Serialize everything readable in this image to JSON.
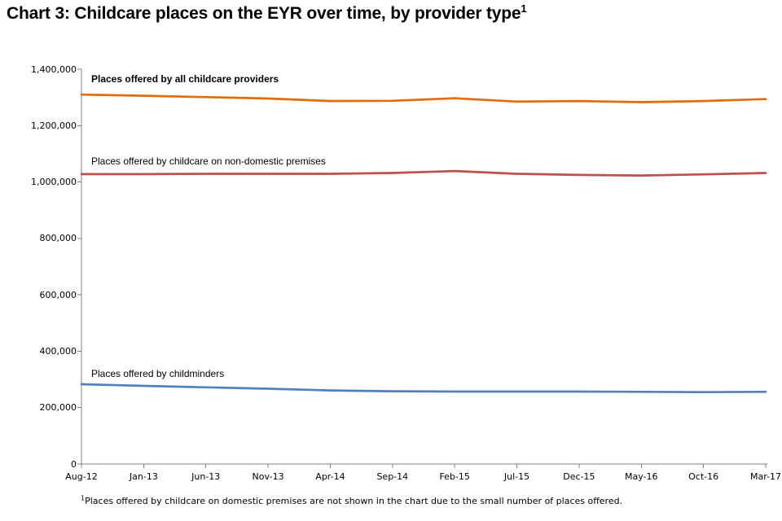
{
  "title": {
    "text": "Chart 3: Childcare places on the EYR over time, by provider type",
    "superscript": "1"
  },
  "footnote": {
    "superscript": "1",
    "text": "Places offered by childcare on domestic premises are not shown in the chart due to the small number of places offered."
  },
  "chart_data": {
    "type": "line",
    "title": "Chart 3: Childcare places on the EYR over time, by provider type",
    "categories": [
      "Aug-12",
      "Jan-13",
      "Jun-13",
      "Nov-13",
      "Apr-14",
      "Sep-14",
      "Feb-15",
      "Jul-15",
      "Dec-15",
      "May-16",
      "Oct-16",
      "Mar-17"
    ],
    "series": [
      {
        "name": "Places offered by all childcare providers",
        "color": "#E36C09",
        "label_style": "bold",
        "values": [
          1310000,
          1306000,
          1301000,
          1296000,
          1287000,
          1288000,
          1297000,
          1285000,
          1287000,
          1283000,
          1287000,
          1294000
        ]
      },
      {
        "name": "Places offered by childcare on non-domestic premises",
        "color": "#C0504D",
        "label_style": "normal",
        "values": [
          1028000,
          1028000,
          1029000,
          1029000,
          1029000,
          1032000,
          1039000,
          1029000,
          1025000,
          1023000,
          1027000,
          1032000
        ]
      },
      {
        "name": "Places offered by childminders",
        "color": "#4F81BD",
        "label_style": "normal",
        "values": [
          283000,
          277000,
          272000,
          267000,
          261000,
          258000,
          257000,
          257000,
          257000,
          256000,
          255000,
          256000
        ]
      }
    ],
    "xlabel": "",
    "ylabel": "",
    "ylim": [
      0,
      1400000
    ],
    "y_ticks": [
      {
        "value": 1400000,
        "label": "1,400,000"
      },
      {
        "value": 1200000,
        "label": "1,200,000"
      },
      {
        "value": 1000000,
        "label": "1,000,000"
      },
      {
        "value": 800000,
        "label": "800,000"
      },
      {
        "value": 600000,
        "label": "600,000"
      },
      {
        "value": 400000,
        "label": "400,000"
      },
      {
        "value": 200000,
        "label": "200,000"
      },
      {
        "value": 0,
        "label": "0"
      }
    ],
    "grid": false,
    "legend": "inline-labels",
    "axis_color": "#808080",
    "text_color": "#000000"
  }
}
